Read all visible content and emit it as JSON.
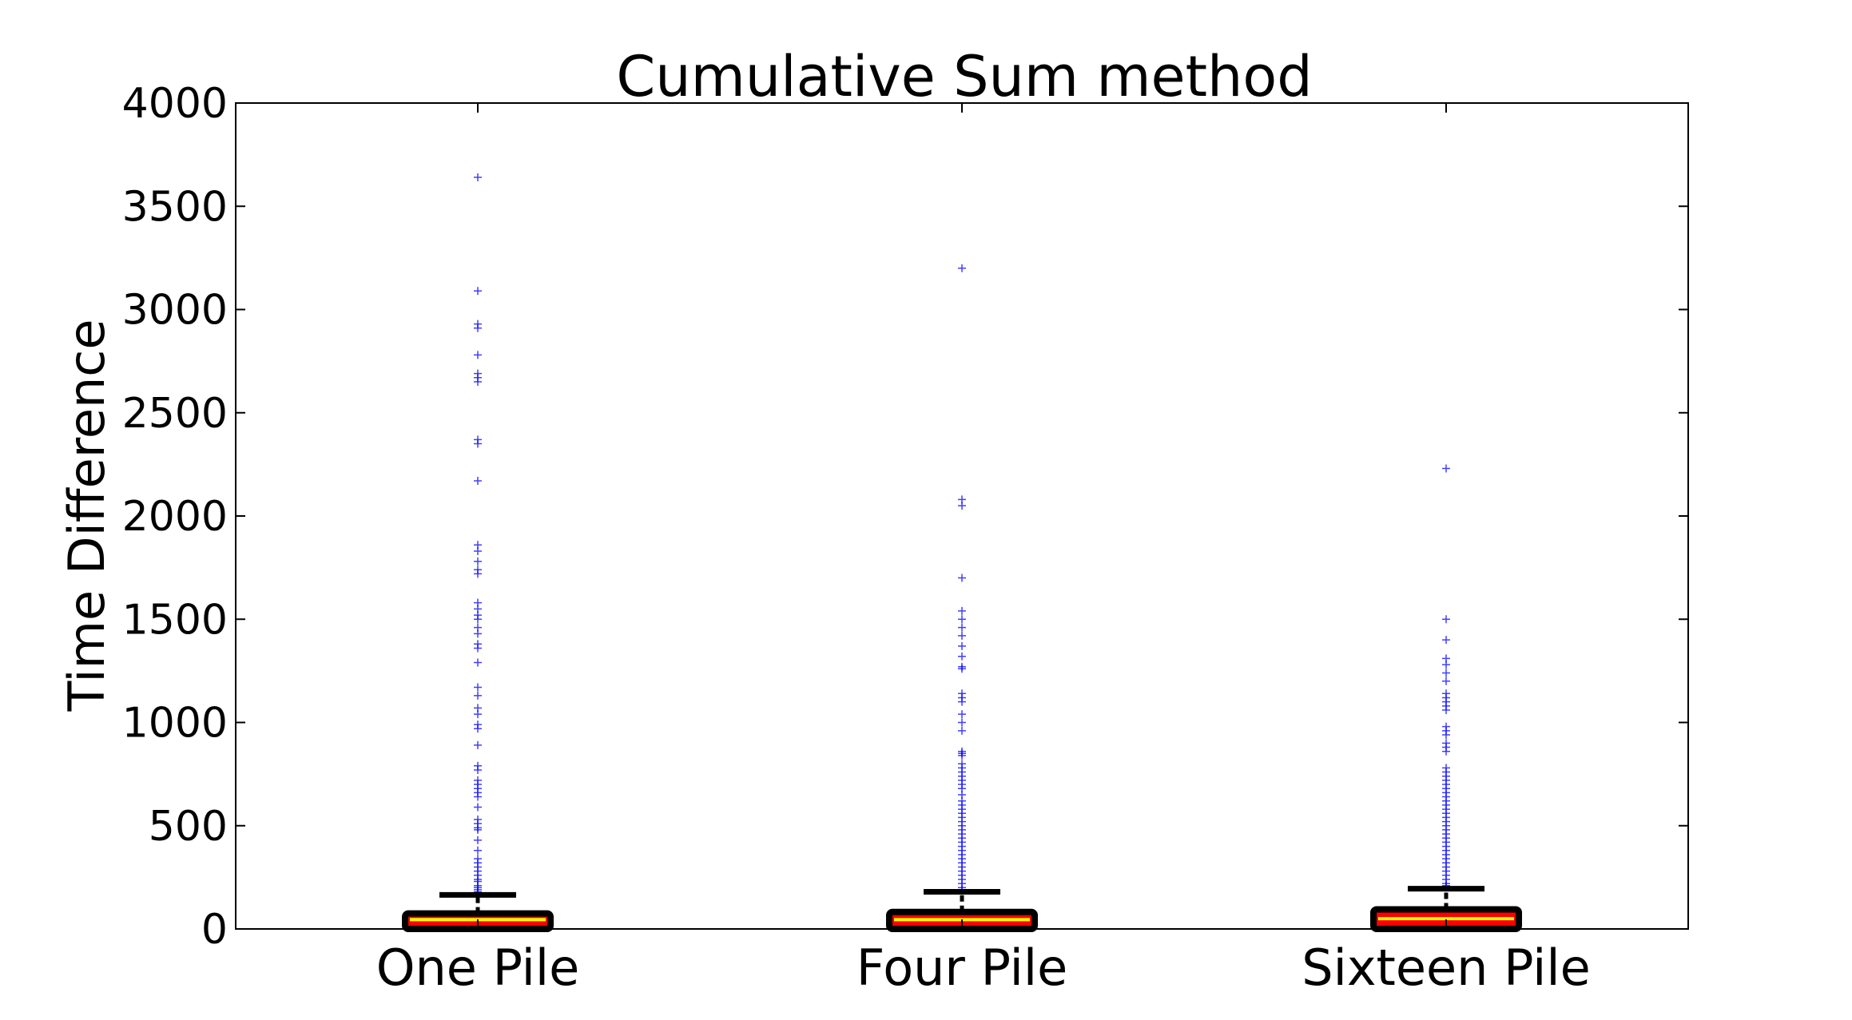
{
  "chart_data": {
    "type": "box",
    "title": "Cumulative Sum method",
    "xlabel": "",
    "ylabel": "Time Difference",
    "ylim": [
      0,
      4000
    ],
    "yticks": [
      "0",
      "500",
      "1000",
      "1500",
      "2000",
      "2500",
      "3000",
      "3500",
      "4000"
    ],
    "grid": false,
    "categories": [
      "One Pile",
      "Four Pile",
      "Sixteen Pile"
    ],
    "boxes": [
      {
        "category": "One Pile",
        "whisker_low": 0,
        "q1": 0,
        "median": 45,
        "q3": 75,
        "whisker_high": 165,
        "outliers": [
          3640,
          3090,
          2930,
          2910,
          2780,
          2690,
          2670,
          2650,
          2370,
          2350,
          2170,
          1860,
          1830,
          1780,
          1740,
          1720,
          1580,
          1550,
          1520,
          1500,
          1460,
          1430,
          1380,
          1360,
          1290,
          1170,
          1130,
          1070,
          1040,
          990,
          970,
          890,
          790,
          770,
          720,
          700,
          680,
          660,
          640,
          590,
          530,
          510,
          490,
          480,
          430,
          380,
          340,
          320,
          300,
          280,
          260,
          240,
          230,
          210,
          200,
          190,
          180,
          175
        ]
      },
      {
        "category": "Four Pile",
        "whisker_low": 0,
        "q1": 0,
        "median": 45,
        "q3": 82,
        "whisker_high": 180,
        "outliers": [
          3200,
          2080,
          2050,
          1700,
          1540,
          1500,
          1460,
          1420,
          1370,
          1320,
          1270,
          1260,
          1140,
          1120,
          1100,
          1040,
          1000,
          960,
          860,
          850,
          840,
          800,
          780,
          760,
          740,
          720,
          700,
          680,
          650,
          620,
          600,
          580,
          560,
          540,
          520,
          500,
          480,
          460,
          440,
          420,
          400,
          380,
          360,
          340,
          320,
          300,
          280,
          260,
          240,
          220,
          200,
          190
        ]
      },
      {
        "category": "Sixteen Pile",
        "whisker_low": 0,
        "q1": 0,
        "median": 50,
        "q3": 95,
        "whisker_high": 195,
        "outliers": [
          2230,
          1500,
          1400,
          1310,
          1280,
          1240,
          1200,
          1140,
          1120,
          1100,
          1080,
          1060,
          980,
          960,
          940,
          900,
          880,
          860,
          780,
          760,
          740,
          720,
          700,
          680,
          660,
          640,
          620,
          600,
          580,
          560,
          540,
          520,
          500,
          480,
          460,
          440,
          420,
          400,
          380,
          360,
          340,
          320,
          300,
          280,
          260,
          240,
          220,
          210,
          200
        ]
      }
    ],
    "colors": {
      "box": "#000000",
      "fill": "#ff0000",
      "median": "#ffff00",
      "outlier": "#0000ff",
      "whisker": "#000000"
    }
  }
}
